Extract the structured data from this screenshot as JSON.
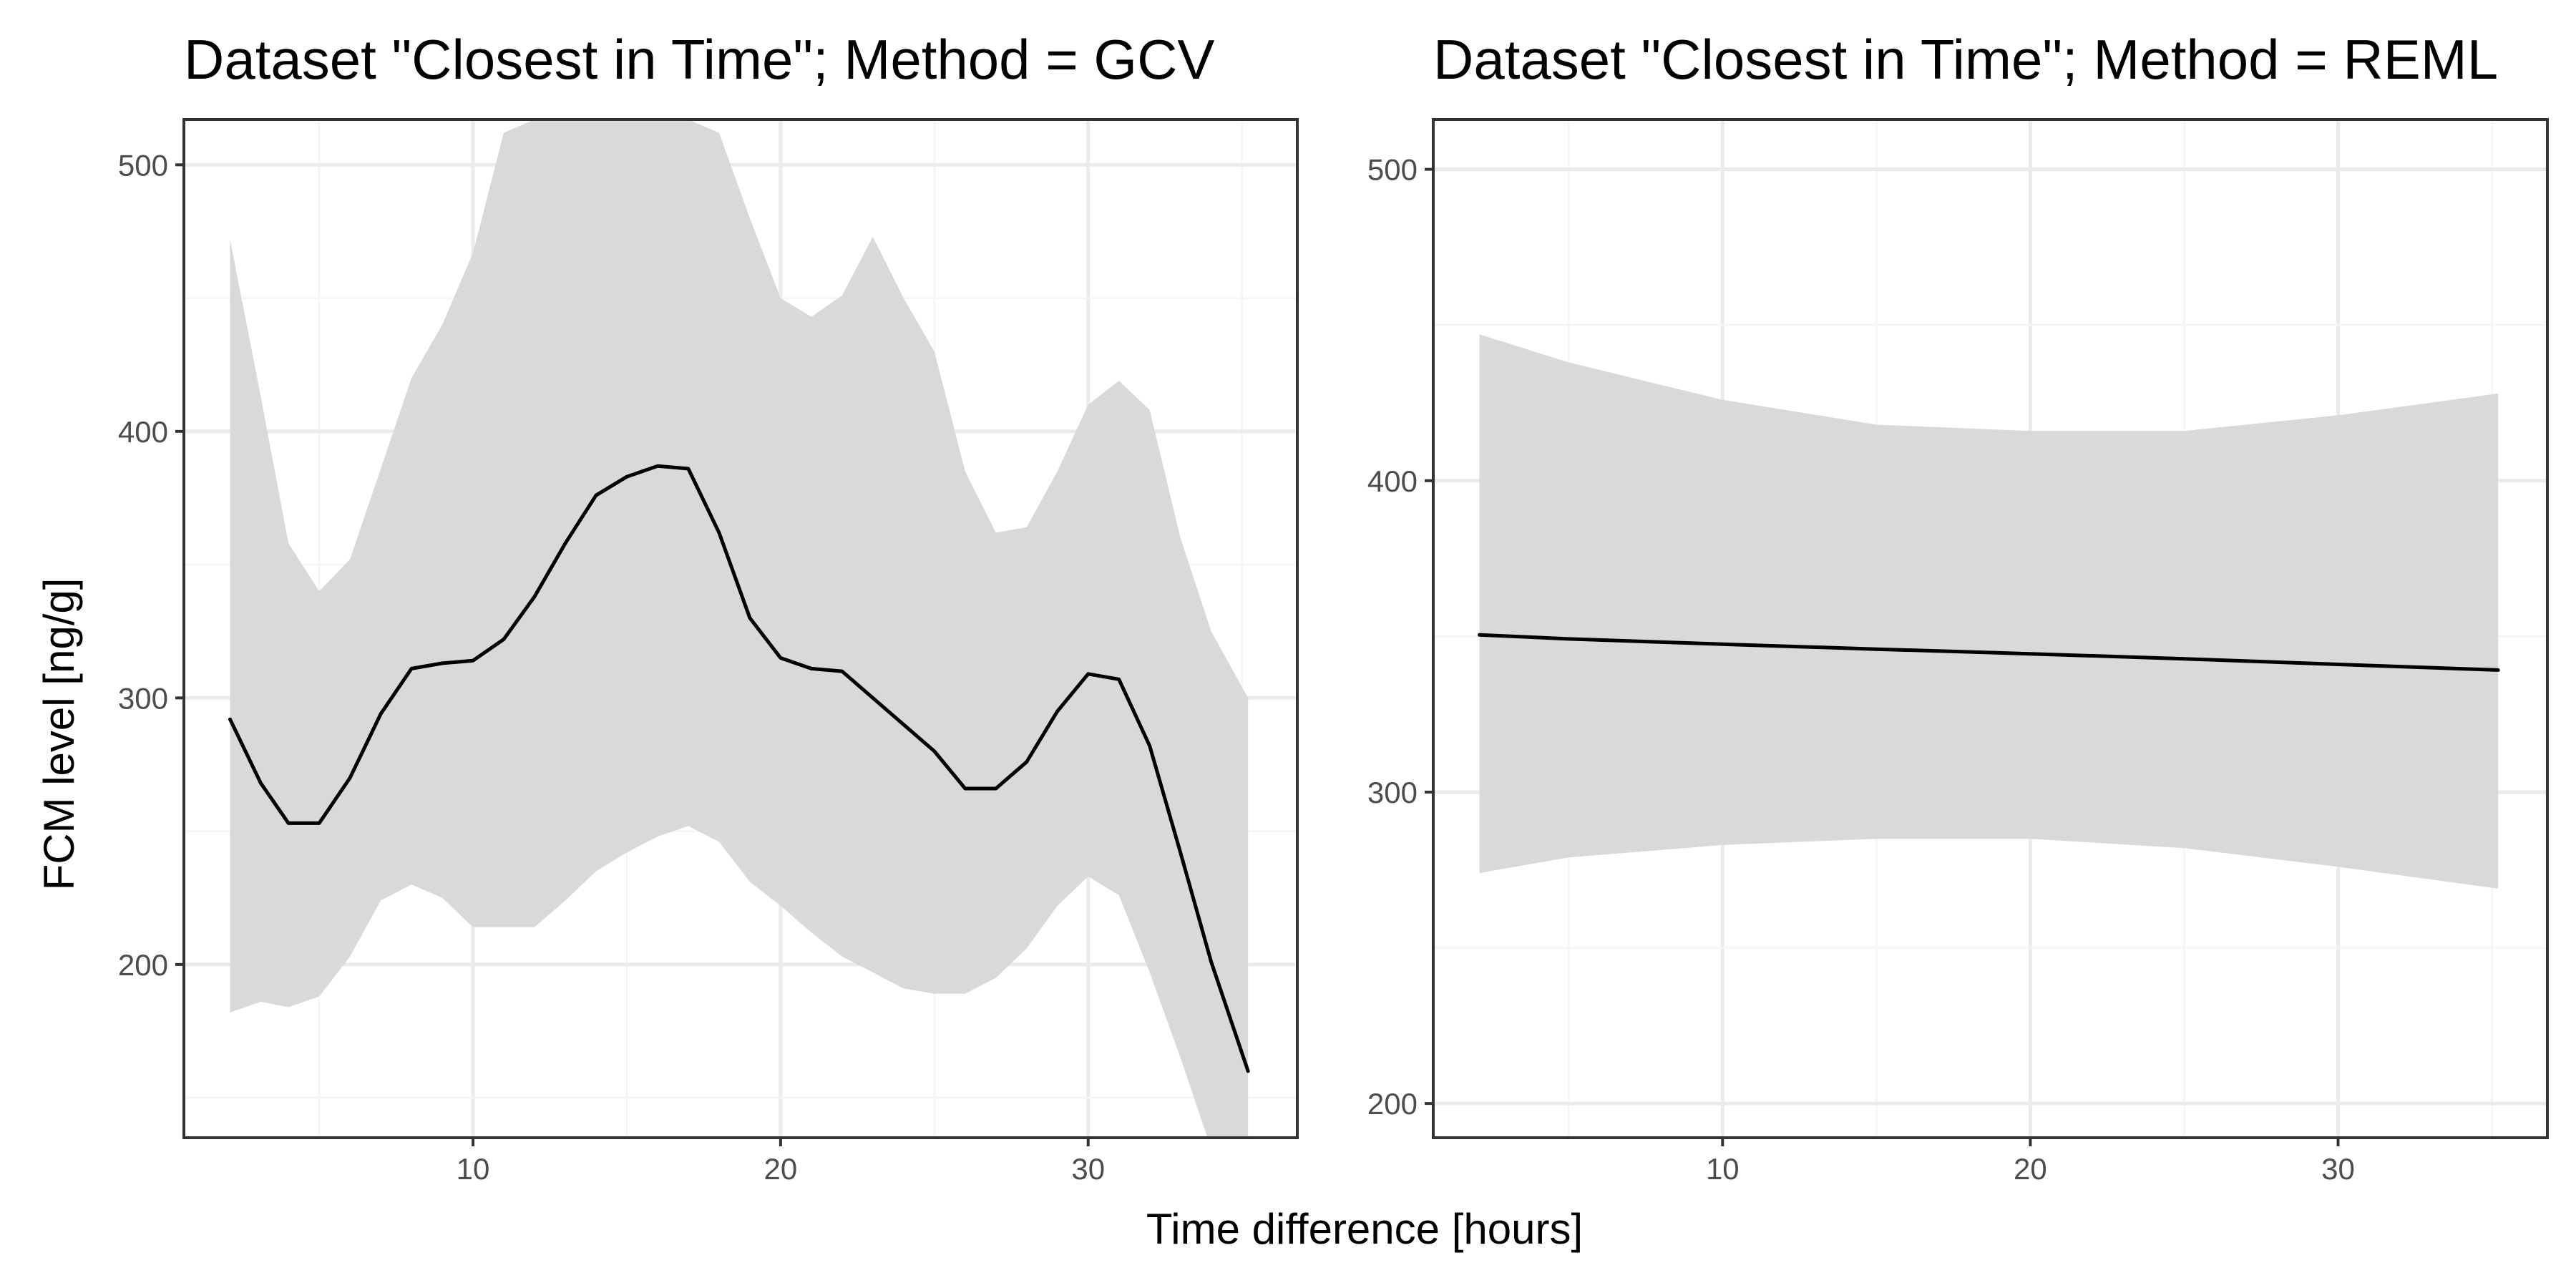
{
  "figure": {
    "xlabel": "Time difference [hours]",
    "ylabel": "FCM level [ng/g]"
  },
  "chart_data": [
    {
      "type": "line",
      "title": "Dataset \"Closest in Time\"; Method = GCV",
      "xlabel": "Time difference [hours]",
      "ylabel": "FCM level [ng/g]",
      "xlim": [
        0.6,
        36.8
      ],
      "ylim": [
        135,
        517
      ],
      "x_ticks": [
        10,
        20,
        30
      ],
      "y_ticks": [
        200,
        300,
        400,
        500
      ],
      "grid": true,
      "legend": "none",
      "colors": {
        "line": "#000000",
        "band": "#d9d9d9",
        "panel_border": "#333333",
        "grid_major": "#ebebeb",
        "grid_minor": "#f5f5f5"
      },
      "series": [
        {
          "x": [
            2.1,
            3.1,
            4.0,
            5.0,
            6.0,
            7.0,
            8.0,
            9.0,
            10.0,
            11.0,
            12.0,
            13.0,
            14.0,
            15.0,
            16.0,
            17.0,
            18.0,
            19.0,
            20.0,
            21.0,
            22.0,
            23.0,
            24.0,
            25.0,
            26.0,
            27.0,
            28.0,
            29.0,
            30.0,
            31.0,
            32.0,
            33.0,
            34.0,
            35.2
          ],
          "y": [
            292,
            268,
            253,
            253,
            270,
            294,
            311,
            313,
            314,
            322,
            338,
            358,
            376,
            383,
            387,
            386,
            362,
            330,
            315,
            311,
            310,
            300,
            290,
            280,
            266,
            266,
            276,
            295,
            309,
            307,
            282,
            242,
            201,
            160
          ],
          "lower": [
            182,
            186,
            184,
            188,
            203,
            224,
            230,
            225,
            214,
            214,
            214,
            224,
            235,
            242,
            248,
            252,
            246,
            231,
            222,
            212,
            203,
            197,
            191,
            189,
            189,
            195,
            206,
            222,
            233,
            226,
            197,
            165,
            131,
            131
          ],
          "upper": [
            472,
            413,
            358,
            340,
            352,
            386,
            420,
            440,
            467,
            512,
            517,
            517,
            517,
            517,
            517,
            517,
            512,
            480,
            450,
            443,
            451,
            473,
            450,
            430,
            385,
            362,
            364,
            385,
            410,
            419,
            408,
            360,
            325,
            300
          ]
        }
      ]
    },
    {
      "type": "line",
      "title": "Dataset \"Closest in Time\"; Method = REML",
      "xlabel": "Time difference [hours]",
      "ylabel": "",
      "xlim": [
        0.6,
        36.8
      ],
      "ylim": [
        189,
        516
      ],
      "x_ticks": [
        10,
        20,
        30
      ],
      "y_ticks": [
        200,
        300,
        400,
        500
      ],
      "grid": true,
      "legend": "none",
      "colors": {
        "line": "#000000",
        "band": "#d9d9d9",
        "panel_border": "#333333",
        "grid_major": "#ebebeb",
        "grid_minor": "#f5f5f5"
      },
      "series": [
        {
          "x": [
            2.1,
            5.0,
            10.0,
            15.0,
            20.0,
            25.0,
            30.0,
            35.2
          ],
          "y": [
            350.5,
            349.2,
            347.5,
            345.9,
            344.4,
            342.8,
            341.0,
            339.2
          ],
          "lower": [
            274,
            279,
            283,
            285,
            285,
            282,
            276,
            269
          ],
          "upper": [
            447,
            438,
            426,
            418,
            416,
            416,
            421,
            428
          ]
        }
      ]
    }
  ]
}
